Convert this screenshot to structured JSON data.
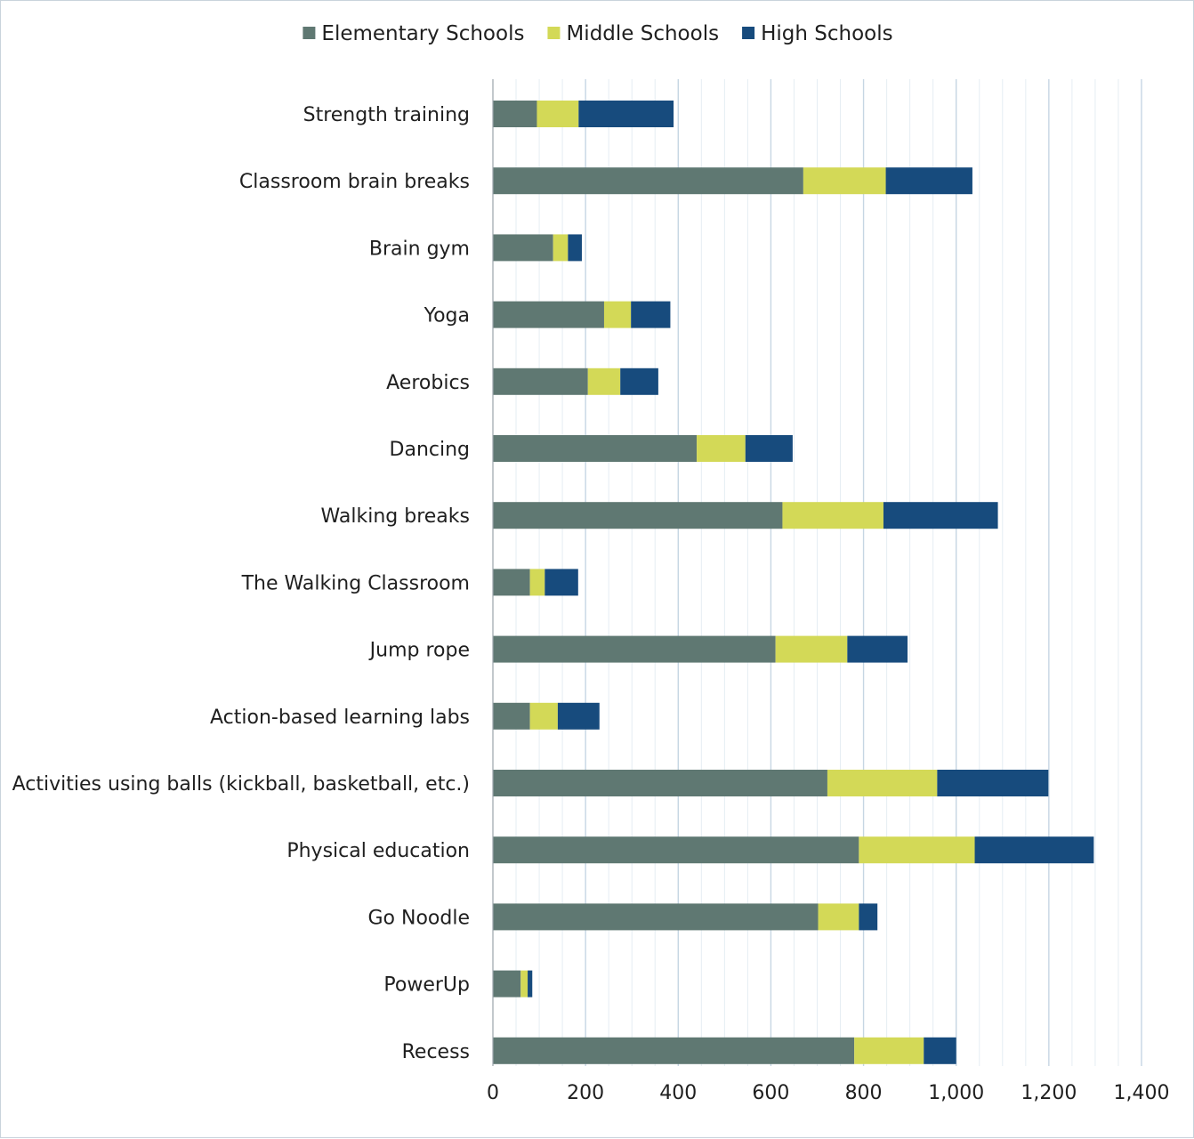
{
  "colors": {
    "elementary": "#5f7872",
    "middle": "#d3d957",
    "high": "#174b7d",
    "grid_major": "#c6d6e3",
    "grid_minor": "#e5edf3",
    "axis": "#9aa3ab"
  },
  "chart_data": {
    "type": "bar",
    "orientation": "horizontal",
    "stacked": true,
    "title": "",
    "xlabel": "",
    "ylabel": "",
    "xlim": [
      0,
      1400
    ],
    "x_ticks": [
      0,
      200,
      400,
      600,
      800,
      1000,
      1200,
      1400
    ],
    "x_tick_labels": [
      "0",
      "200",
      "400",
      "600",
      "800",
      "1,000",
      "1,200",
      "1,400"
    ],
    "grid": "vertical",
    "legend_position": "top",
    "categories": [
      "Strength training",
      "Classroom brain breaks",
      "Brain gym",
      "Yoga",
      "Aerobics",
      "Dancing",
      "Walking breaks",
      "The Walking Classroom",
      "Jump rope",
      "Action-based learning labs",
      "Activities using balls (kickball, basketball, etc.)",
      "Physical education",
      "Go Noodle",
      "PowerUp",
      "Recess"
    ],
    "series": [
      {
        "name": "Elementary Schools",
        "color_key": "elementary",
        "values": [
          95,
          670,
          130,
          240,
          205,
          440,
          625,
          80,
          610,
          80,
          722,
          790,
          702,
          60,
          780
        ]
      },
      {
        "name": "Middle Schools",
        "color_key": "middle",
        "values": [
          90,
          178,
          32,
          58,
          70,
          105,
          218,
          32,
          155,
          60,
          237,
          250,
          88,
          15,
          150
        ]
      },
      {
        "name": "High Schools",
        "color_key": "high",
        "values": [
          205,
          187,
          30,
          85,
          82,
          102,
          247,
          72,
          130,
          90,
          240,
          257,
          40,
          10,
          70
        ]
      }
    ]
  }
}
